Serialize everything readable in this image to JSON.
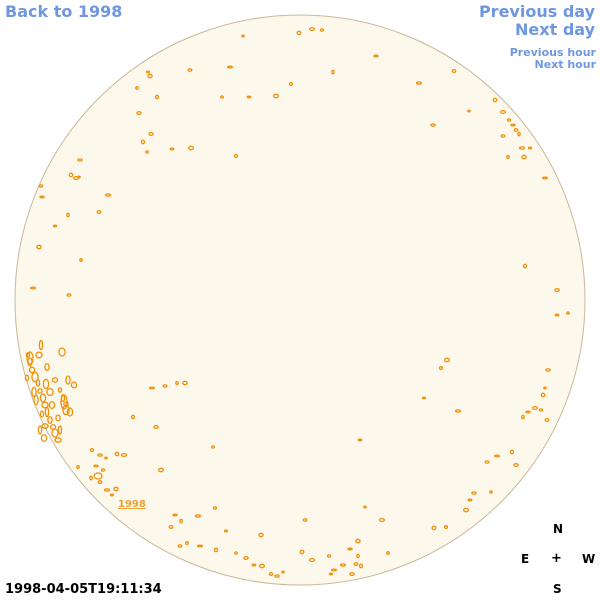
{
  "nav": {
    "back_label": "Back to 1998",
    "previous_day": "Previous day",
    "next_day": "Next day",
    "previous_hour": "Previous hour",
    "next_hour": "Next hour"
  },
  "disc": {
    "fill_color": "#fdf8ec",
    "rim_color": "#c8b89a",
    "region_color": "#f0900a",
    "year_label": "1998"
  },
  "timestamp": "1998-04-05T19:11:34",
  "compass": {
    "north": "N",
    "east": "E",
    "center": "+",
    "west": "W",
    "south": "S"
  }
}
